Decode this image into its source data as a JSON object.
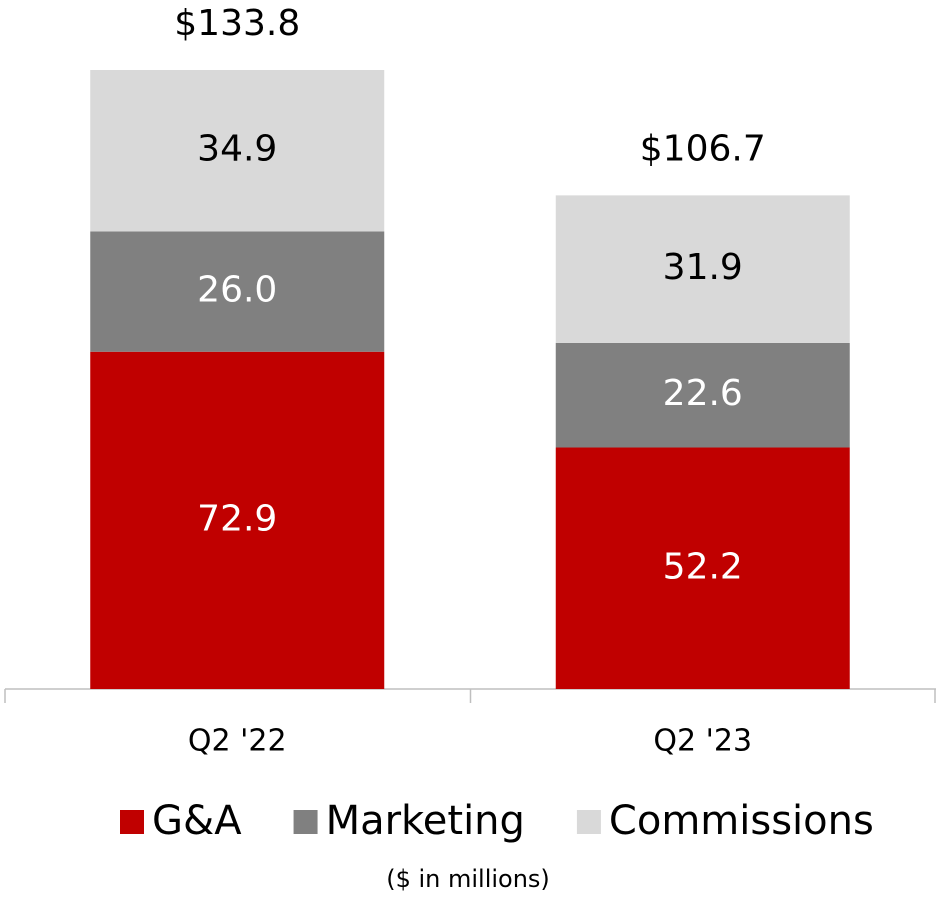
{
  "chart_data": {
    "type": "stacked_bar",
    "categories": [
      "Q2 '22",
      "Q2 '23"
    ],
    "series": [
      {
        "name": "G&A",
        "color": "#c00000",
        "values": [
          72.9,
          52.2
        ],
        "value_labels": [
          "72.9",
          "52.2"
        ]
      },
      {
        "name": "Marketing",
        "color": "#808080",
        "values": [
          26.0,
          22.6
        ],
        "value_labels": [
          "26.0",
          "22.6"
        ]
      },
      {
        "name": "Commissions",
        "color": "#d9d9d9",
        "values": [
          34.9,
          31.9
        ],
        "value_labels": [
          "34.9",
          "31.9"
        ]
      }
    ],
    "totals": [
      133.8,
      106.7
    ],
    "total_labels": [
      "$133.8",
      "$106.7"
    ],
    "note": "($ in millions)",
    "legend": "bottom"
  }
}
